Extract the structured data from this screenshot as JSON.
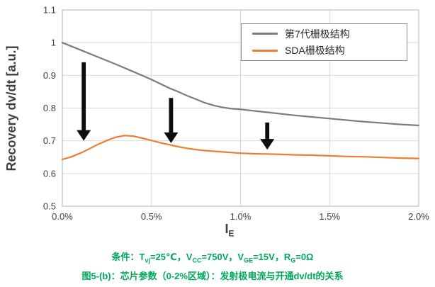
{
  "chart_data": {
    "type": "line",
    "title": "",
    "ylabel": "Recovery dv/dt [a.u.]",
    "xlabel": {
      "base": "I",
      "sub": "E"
    },
    "xlim": [
      0,
      2
    ],
    "ylim": [
      0.5,
      1.1
    ],
    "grid": true,
    "legend_position": "top-right",
    "x_ticks": [
      {
        "label": "0.0%",
        "value": 0
      },
      {
        "label": "0.5%",
        "value": 0.5
      },
      {
        "label": "1.0%",
        "value": 1
      },
      {
        "label": "1.5%",
        "value": 1.5
      },
      {
        "label": "2.0%",
        "value": 2
      }
    ],
    "y_ticks": [
      {
        "label": "0.5",
        "value": 0.5
      },
      {
        "label": "0.6",
        "value": 0.6
      },
      {
        "label": "0.7",
        "value": 0.7
      },
      {
        "label": "0.8",
        "value": 0.8
      },
      {
        "label": "0.9",
        "value": 0.9
      },
      {
        "label": "1",
        "value": 1.0
      },
      {
        "label": "1.1",
        "value": 1.1
      }
    ],
    "series": [
      {
        "name": "第7代栅极结构",
        "color": "#7c7c7c",
        "points": [
          [
            0,
            1.0
          ],
          [
            0.1,
            0.978
          ],
          [
            0.2,
            0.956
          ],
          [
            0.3,
            0.934
          ],
          [
            0.4,
            0.911
          ],
          [
            0.45,
            0.899
          ],
          [
            0.5,
            0.887
          ],
          [
            0.55,
            0.874
          ],
          [
            0.6,
            0.861
          ],
          [
            0.65,
            0.85
          ],
          [
            0.7,
            0.838
          ],
          [
            0.75,
            0.827
          ],
          [
            0.8,
            0.816
          ],
          [
            0.85,
            0.808
          ],
          [
            0.9,
            0.802
          ],
          [
            0.95,
            0.798
          ],
          [
            1.0,
            0.796
          ],
          [
            1.1,
            0.79
          ],
          [
            1.2,
            0.784
          ],
          [
            1.3,
            0.778
          ],
          [
            1.4,
            0.773
          ],
          [
            1.5,
            0.768
          ],
          [
            1.6,
            0.763
          ],
          [
            1.7,
            0.758
          ],
          [
            1.8,
            0.754
          ],
          [
            1.9,
            0.75
          ],
          [
            2.0,
            0.747
          ]
        ]
      },
      {
        "name": "SDA栅极结构",
        "color": "#ED7D31",
        "points": [
          [
            0,
            0.643
          ],
          [
            0.05,
            0.651
          ],
          [
            0.1,
            0.662
          ],
          [
            0.15,
            0.675
          ],
          [
            0.2,
            0.689
          ],
          [
            0.25,
            0.701
          ],
          [
            0.3,
            0.711
          ],
          [
            0.35,
            0.716
          ],
          [
            0.4,
            0.714
          ],
          [
            0.45,
            0.708
          ],
          [
            0.5,
            0.701
          ],
          [
            0.55,
            0.694
          ],
          [
            0.6,
            0.688
          ],
          [
            0.65,
            0.682
          ],
          [
            0.7,
            0.677
          ],
          [
            0.75,
            0.673
          ],
          [
            0.8,
            0.67
          ],
          [
            0.9,
            0.666
          ],
          [
            1.0,
            0.662
          ],
          [
            1.1,
            0.66
          ],
          [
            1.2,
            0.659
          ],
          [
            1.3,
            0.657
          ],
          [
            1.4,
            0.656
          ],
          [
            1.5,
            0.654
          ],
          [
            1.6,
            0.652
          ],
          [
            1.7,
            0.651
          ],
          [
            1.8,
            0.649
          ],
          [
            1.9,
            0.647
          ],
          [
            2.0,
            0.646
          ]
        ]
      }
    ],
    "arrows_down": [
      {
        "x": 0.12,
        "y_from": 0.94,
        "y_to": 0.7
      },
      {
        "x": 0.61,
        "y_from": 0.831,
        "y_to": 0.693
      },
      {
        "x": 1.15,
        "y_from": 0.756,
        "y_to": 0.673
      }
    ]
  },
  "legend": {
    "items": [
      {
        "label": "第7代栅极结构",
        "color": "#7c7c7c"
      },
      {
        "label": "SDA栅极结构",
        "color": "#ED7D31"
      }
    ]
  },
  "captions": {
    "color": "#00A85B",
    "line1": {
      "segments": [
        {
          "t": "条件："
        },
        {
          "t": "T"
        },
        {
          "t": "vj",
          "sub": true
        },
        {
          "t": "=25℃，V"
        },
        {
          "t": "CC",
          "sub": true
        },
        {
          "t": "=750V，V"
        },
        {
          "t": "GE",
          "sub": true
        },
        {
          "t": "=15V，R"
        },
        {
          "t": "G",
          "sub": true
        },
        {
          "t": "=0Ω"
        }
      ]
    },
    "line2": {
      "text": "图5-(b)：芯片参数（0-2%区域）：发射极电流与开通dv/dt的关系"
    }
  },
  "style_colors": {
    "gridline": "#d9d9d9",
    "plot_border": "#bfbfbf",
    "tick_text": "#3f3f3f",
    "arrow": "#0d0d0d"
  }
}
